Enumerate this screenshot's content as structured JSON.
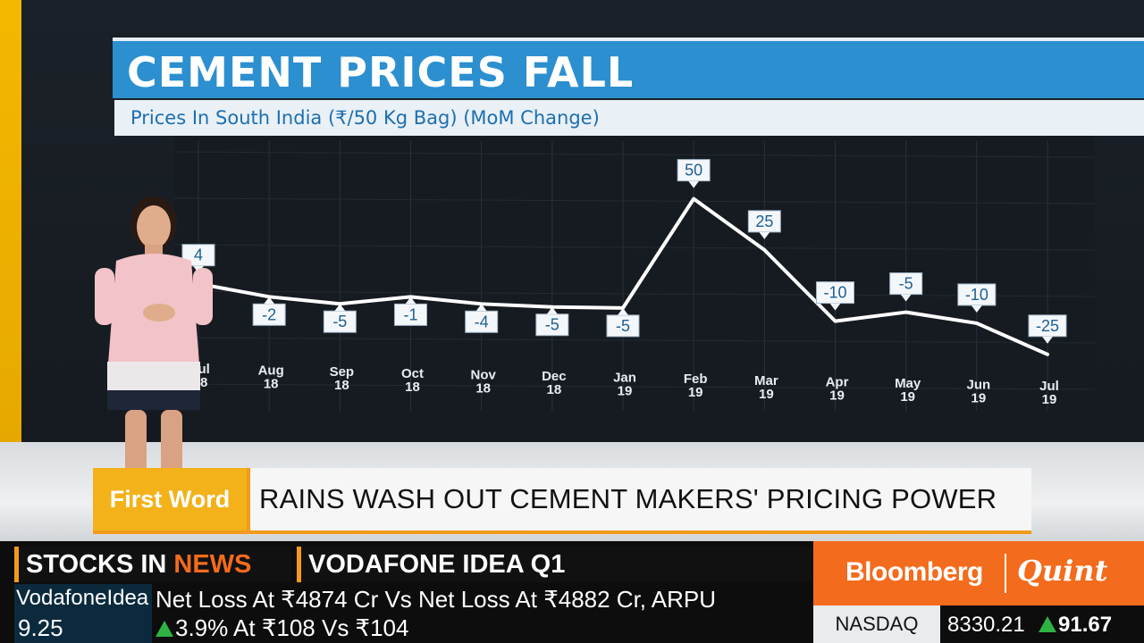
{
  "chart_data": {
    "type": "line",
    "title": "CEMENT PRICES FALL",
    "subtitle": "Prices In South India (₹/50 Kg Bag) (MoM Change)",
    "categories": [
      [
        "Jul",
        "18"
      ],
      [
        "Aug",
        "18"
      ],
      [
        "Sep",
        "18"
      ],
      [
        "Oct",
        "18"
      ],
      [
        "Nov",
        "18"
      ],
      [
        "Dec",
        "18"
      ],
      [
        "Jan",
        "19"
      ],
      [
        "Feb",
        "19"
      ],
      [
        "Mar",
        "19"
      ],
      [
        "Apr",
        "19"
      ],
      [
        "May",
        "19"
      ],
      [
        "Jun",
        "19"
      ],
      [
        "Jul",
        "19"
      ]
    ],
    "series": [
      {
        "values": [
          4,
          -2,
          -5,
          -1,
          -4,
          -5,
          -5,
          50,
          25,
          -10,
          -5,
          -10,
          -25
        ],
        "labels": [
          "4",
          "-2",
          "-5",
          "-1",
          "-4",
          "-5",
          "-5",
          "50",
          "25",
          "-10",
          "-5",
          "-10",
          "-25"
        ]
      }
    ],
    "ylim": [
      -30,
      60
    ],
    "grid": true,
    "legend": "none",
    "line_color": "#ffffff"
  },
  "headline": {
    "tag": "First Word",
    "text": "RAINS WASH OUT CEMENT MAKERS' PRICING POWER"
  },
  "ticker": {
    "section_label": "STOCKS IN",
    "section_label_accent": "NEWS",
    "story_title": "VODAFONE IDEA Q1",
    "stock_name": "VodafoneIdea",
    "stock_price": "9.25",
    "story_line1": "Net Loss At ₹4874 Cr Vs Net Loss At ₹4882 Cr, ARPU",
    "story_line2": "3.9% At ₹108 Vs ₹104"
  },
  "brand": {
    "left": "Bloomberg",
    "right": "Quint"
  },
  "market": {
    "index_name": "NASDAQ",
    "index_value": "8330.21",
    "index_change": "91.67"
  }
}
